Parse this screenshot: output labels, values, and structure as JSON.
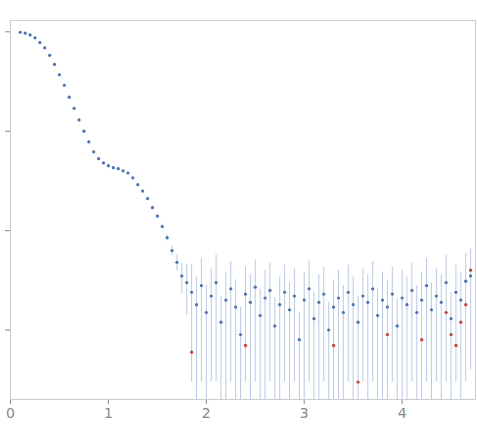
{
  "chart_data": {
    "type": "scatter",
    "log": "y",
    "tick_labels": "x",
    "xlim": [
      0,
      4.75
    ],
    "xticks": [
      0,
      1,
      2,
      3,
      4
    ],
    "ylim": [
      0.0002,
      1.3
    ],
    "yticks": [
      0.001,
      0.01,
      0.1,
      1
    ],
    "error_color": "#b9c9e8",
    "series": [
      {
        "color": "#4472c4",
        "marker": "circle",
        "x": [
          0.1,
          0.15,
          0.2,
          0.25,
          0.3,
          0.35,
          0.4,
          0.45,
          0.5,
          0.55,
          0.6,
          0.65,
          0.7,
          0.75,
          0.8,
          0.85,
          0.9,
          0.95,
          1.0,
          1.05,
          1.1,
          1.15,
          1.2,
          1.25,
          1.3,
          1.35,
          1.4,
          1.45,
          1.5,
          1.55,
          1.6,
          1.65,
          1.7,
          1.75,
          1.8,
          1.85,
          1.9,
          1.95,
          2.0,
          2.05,
          2.1,
          2.15,
          2.2,
          2.25,
          2.3,
          2.35,
          2.4,
          2.45,
          2.5,
          2.55,
          2.6,
          2.65,
          2.7,
          2.75,
          2.8,
          2.85,
          2.9,
          2.95,
          3.0,
          3.05,
          3.1,
          3.15,
          3.2,
          3.25,
          3.3,
          3.35,
          3.4,
          3.45,
          3.5,
          3.55,
          3.6,
          3.65,
          3.7,
          3.75,
          3.8,
          3.85,
          3.9,
          3.95,
          4.0,
          4.05,
          4.1,
          4.15,
          4.2,
          4.25,
          4.3,
          4.35,
          4.4,
          4.45,
          4.5,
          4.55,
          4.6,
          4.65,
          4.7
        ],
        "values": [
          0.99,
          0.97,
          0.93,
          0.87,
          0.78,
          0.69,
          0.58,
          0.47,
          0.37,
          0.29,
          0.22,
          0.17,
          0.13,
          0.1,
          0.078,
          0.062,
          0.053,
          0.048,
          0.045,
          0.043,
          0.042,
          0.04,
          0.038,
          0.034,
          0.029,
          0.025,
          0.021,
          0.017,
          0.014,
          0.011,
          0.0085,
          0.0063,
          0.0048,
          0.0035,
          0.003,
          0.0024,
          0.0018,
          0.0028,
          0.0015,
          0.0022,
          0.003,
          0.0012,
          0.002,
          0.0026,
          0.0017,
          0.0009,
          0.0023,
          0.0019,
          0.0027,
          0.0014,
          0.0021,
          0.0025,
          0.0011,
          0.0018,
          0.0024,
          0.0016,
          0.0022,
          0.0008,
          0.002,
          0.0026,
          0.0013,
          0.0019,
          0.0023,
          0.001,
          0.0017,
          0.0021,
          0.0015,
          0.0024,
          0.0018,
          0.0012,
          0.0022,
          0.0019,
          0.0026,
          0.0014,
          0.002,
          0.0017,
          0.0023,
          0.0011,
          0.0021,
          0.0018,
          0.0025,
          0.0015,
          0.002,
          0.0028,
          0.0016,
          0.0022,
          0.0019,
          0.003,
          0.0013,
          0.0024,
          0.002,
          0.0031,
          0.0035
        ],
        "errors": [
          0.02,
          0.02,
          0.02,
          0.015,
          0.015,
          0.012,
          0.01,
          0.008,
          0.006,
          0.005,
          0.004,
          0.003,
          0.0025,
          0.002,
          0.0016,
          0.0013,
          0.0011,
          0.001,
          0.001,
          0.001,
          0.001,
          0.001,
          0.001,
          0.0009,
          0.0008,
          0.0008,
          0.0007,
          0.0007,
          0.0006,
          0.0006,
          0.0006,
          0.0007,
          0.0009,
          0.0012,
          0.0016,
          0.0021,
          0.0016,
          0.0025,
          0.0013,
          0.0019,
          0.0027,
          0.001,
          0.0018,
          0.0023,
          0.0015,
          0.0008,
          0.002,
          0.0017,
          0.0024,
          0.0012,
          0.0019,
          0.0022,
          0.001,
          0.0016,
          0.0021,
          0.0014,
          0.0019,
          0.0007,
          0.0018,
          0.0023,
          0.0011,
          0.0017,
          0.002,
          0.0009,
          0.0015,
          0.0019,
          0.0013,
          0.0021,
          0.0016,
          0.001,
          0.0019,
          0.0017,
          0.0023,
          0.0012,
          0.0018,
          0.0015,
          0.002,
          0.001,
          0.0019,
          0.0016,
          0.0022,
          0.0013,
          0.0018,
          0.0025,
          0.0014,
          0.0019,
          0.0017,
          0.0027,
          0.0011,
          0.0021,
          0.0018,
          0.0028,
          0.0031
        ]
      },
      {
        "color": "#e0302a",
        "marker": "circle",
        "x": [
          1.85,
          2.4,
          3.3,
          3.55,
          3.85,
          4.2,
          4.45,
          4.5,
          4.55,
          4.6,
          4.65,
          4.7
        ],
        "values": [
          0.0006,
          0.0007,
          0.0007,
          0.0003,
          0.0009,
          0.0008,
          0.0015,
          0.0009,
          0.0007,
          0.0012,
          0.0018,
          0.004
        ]
      }
    ]
  }
}
